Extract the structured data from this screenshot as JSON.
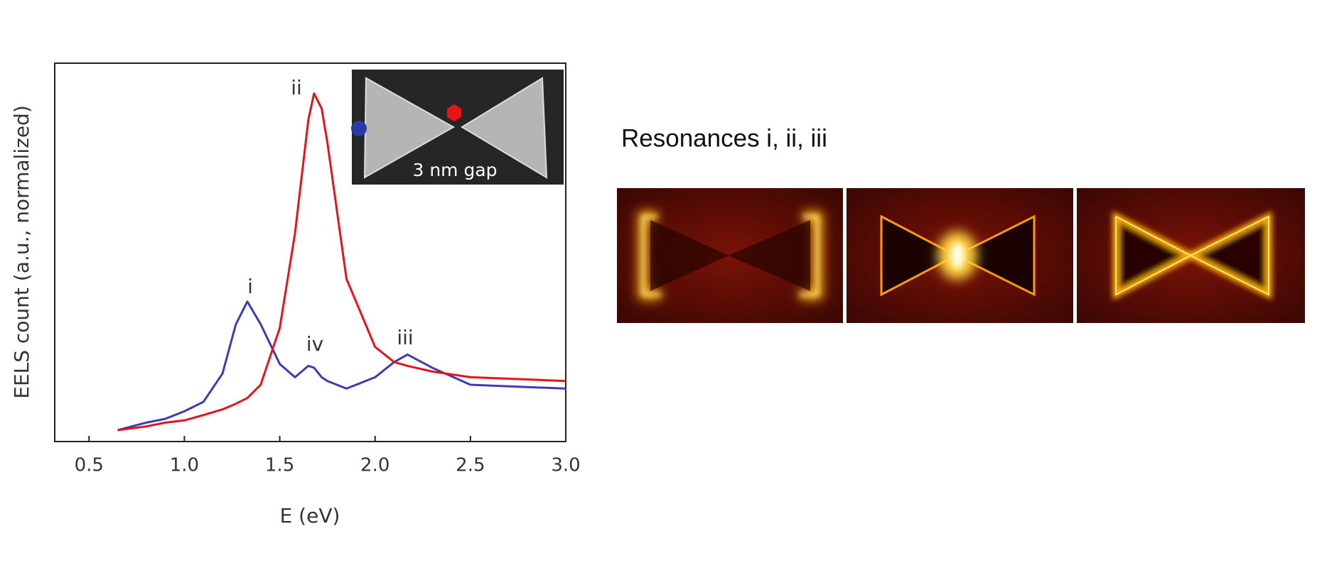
{
  "chart_data": {
    "type": "line",
    "x_label": "E (eV)",
    "y_label": "EELS count (a.u., normalized)",
    "x": [
      0.65,
      0.8,
      0.9,
      1.0,
      1.1,
      1.2,
      1.27,
      1.33,
      1.4,
      1.5,
      1.58,
      1.65,
      1.68,
      1.72,
      1.75,
      1.85,
      2.0,
      2.1,
      2.17,
      2.3,
      2.5,
      2.75,
      3.0
    ],
    "series": [
      {
        "color": "#3a3db5",
        "values": [
          0.03,
          0.05,
          0.06,
          0.08,
          0.105,
          0.18,
          0.31,
          0.37,
          0.31,
          0.205,
          0.17,
          0.2,
          0.195,
          0.17,
          0.16,
          0.14,
          0.17,
          0.21,
          0.23,
          0.195,
          0.15,
          0.145,
          0.14
        ]
      },
      {
        "color": "#e5141b",
        "values": [
          0.03,
          0.04,
          0.05,
          0.056,
          0.07,
          0.085,
          0.1,
          0.115,
          0.15,
          0.3,
          0.55,
          0.85,
          0.92,
          0.88,
          0.79,
          0.43,
          0.25,
          0.21,
          0.2,
          0.185,
          0.17,
          0.165,
          0.16
        ]
      }
    ],
    "xlim": [
      0.32,
      3.0
    ],
    "xticks": [
      0.5,
      {
        "value": 1,
        "label": "1.0"
      },
      1.5,
      {
        "value": 2,
        "label": "2.0"
      },
      2.5,
      {
        "value": 3,
        "label": "3.0"
      }
    ],
    "ylim": [
      0,
      1
    ],
    "annotations": [
      "i",
      "ii",
      "iii",
      "iv"
    ],
    "inset_label": "3 nm gap"
  },
  "side_title": "Resonances i, ii, iii"
}
